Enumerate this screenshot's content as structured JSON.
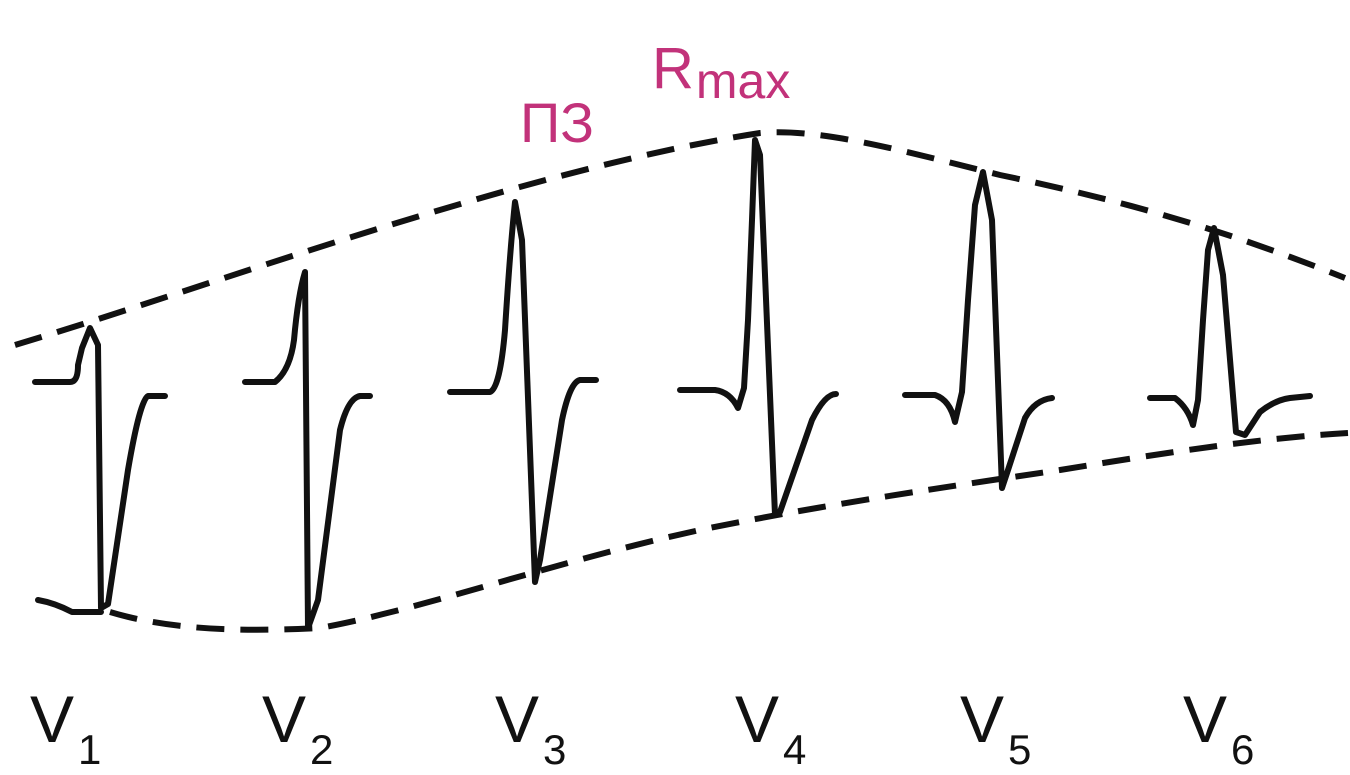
{
  "annotations": {
    "transition_zone": "ПЗ",
    "r_max": {
      "main": "R",
      "sub": "max"
    },
    "accent_color": "#c2327a"
  },
  "ink_color": "#111111",
  "leads": [
    {
      "main": "V",
      "sub": "1"
    },
    {
      "main": "V",
      "sub": "2"
    },
    {
      "main": "V",
      "sub": "3"
    },
    {
      "main": "V",
      "sub": "4"
    },
    {
      "main": "V",
      "sub": "5"
    },
    {
      "main": "V",
      "sub": "6"
    }
  ]
}
